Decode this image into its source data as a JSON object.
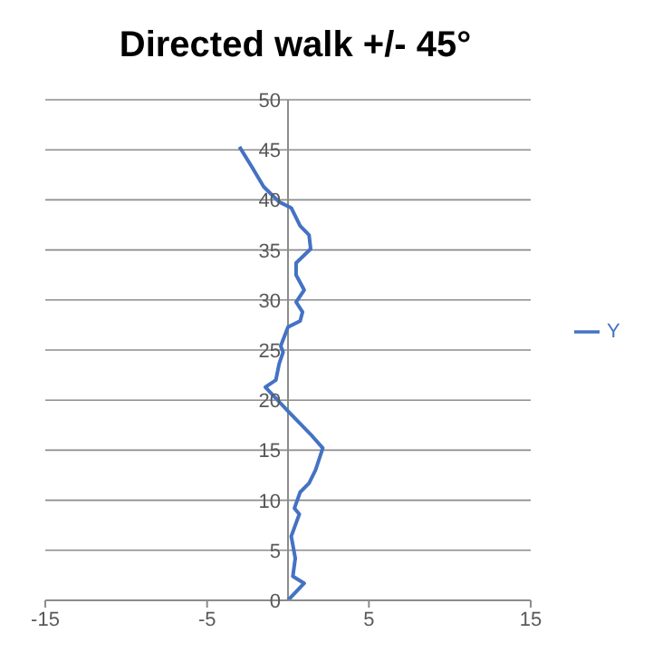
{
  "chart_data": {
    "type": "line",
    "title": "Directed walk +/- 45°",
    "x": [
      0,
      1.0,
      0.3,
      0.45,
      0.2,
      0.7,
      0.4,
      0.75,
      1.3,
      1.7,
      2.15,
      1.5,
      0,
      -1.4,
      -0.75,
      -0.55,
      -0.3,
      -0.45,
      0,
      0.75,
      0.9,
      0.5,
      1.0,
      0.5,
      0.5,
      1.4,
      1.3,
      0.75,
      0.2,
      -0.55,
      -1.5,
      -2.2,
      -3
    ],
    "series": [
      {
        "name": "Y",
        "color": "#4472c4",
        "values": [
          0,
          1.7,
          2.4,
          4.2,
          6.4,
          8.6,
          9.2,
          10.8,
          11.7,
          13,
          15.2,
          16.4,
          18.9,
          21.3,
          22,
          23.6,
          24.8,
          25.4,
          27.3,
          27.9,
          28.8,
          29.8,
          31,
          32.5,
          33.7,
          35.1,
          36.5,
          37.4,
          39.2,
          39.8,
          41.3,
          43.2,
          45.3
        ]
      }
    ],
    "xlim": [
      -15,
      15
    ],
    "xticks": [
      -15,
      -5,
      5,
      15
    ],
    "ylim": [
      0,
      50
    ],
    "yticks": [
      0,
      5,
      10,
      15,
      20,
      25,
      30,
      35,
      40,
      45,
      50
    ],
    "grid": "y",
    "legend": "right",
    "marker": "none",
    "line_style": "solid"
  }
}
